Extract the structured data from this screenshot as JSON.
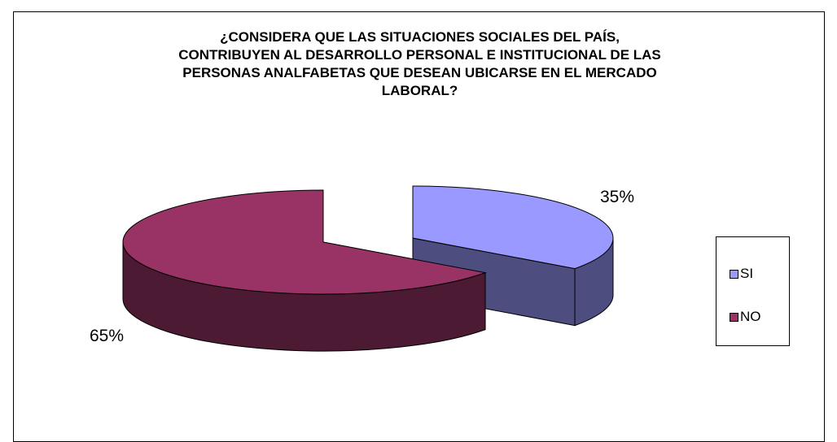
{
  "chart_data": {
    "type": "pie",
    "style": "3d-exploded",
    "title_lines": [
      "¿CONSIDERA QUE LAS SITUACIONES SOCIALES DEL PAÍS,",
      "CONTRIBUYEN AL DESARROLLO PERSONAL E INSTITUCIONAL  DE LAS",
      "PERSONAS ANALFABETAS QUE DESEAN UBICARSE EN EL MERCADO",
      "LABORAL?"
    ],
    "categories": [
      "SI",
      "NO"
    ],
    "values": [
      35,
      65
    ],
    "labels": [
      "35%",
      "65%"
    ],
    "colors": {
      "SI": {
        "top": "#9999ff",
        "side": "#4d4d80"
      },
      "NO": {
        "top": "#993366",
        "side": "#4d1a33"
      }
    },
    "legend": {
      "position": "right",
      "items": [
        {
          "label": "SI",
          "color": "#9999ff"
        },
        {
          "label": "NO",
          "color": "#993366"
        }
      ]
    }
  }
}
